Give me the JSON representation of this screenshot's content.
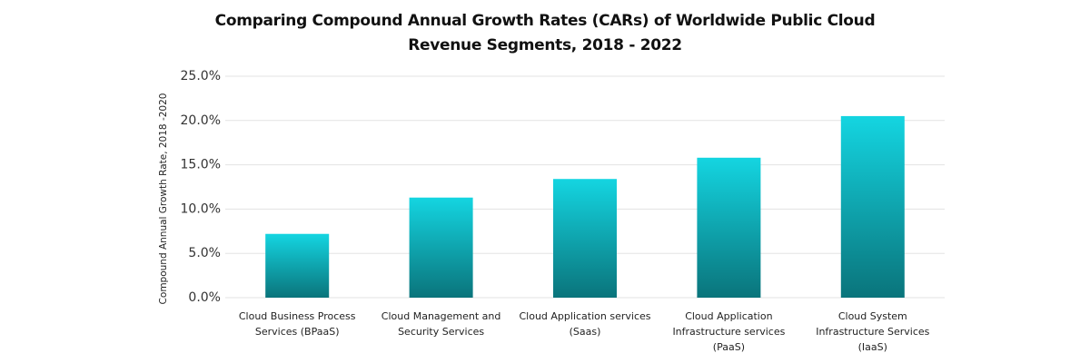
{
  "chart_data": {
    "type": "bar",
    "title": "Comparing Compound Annual Growth Rates (CARs) of Worldwide Public Cloud Revenue Segments, 2018 - 2022",
    "y_label": "Compound Annual Growth Rate, 2018 -2020",
    "categories": [
      "Cloud Business Process Services (BPaaS)",
      "Cloud Management and Security Services",
      "Cloud Application services (Saas)",
      "Cloud Application Infrastructure services (PaaS)",
      "Cloud System Infrastructure Services (IaaS)"
    ],
    "values": [
      7.2,
      11.3,
      13.4,
      15.8,
      20.5
    ],
    "gradient": [
      "#14d5e1",
      "#0a747b"
    ],
    "ylim": [
      0,
      25
    ],
    "yticks": [
      {
        "value": 0,
        "label": "0.0%"
      },
      {
        "value": 5,
        "label": "5.0%"
      },
      {
        "value": 10,
        "label": "10.0%"
      },
      {
        "value": 15,
        "label": "15.0%"
      },
      {
        "value": 20,
        "label": "20.0%"
      },
      {
        "value": 25,
        "label": "25.0%"
      }
    ],
    "grid": true
  }
}
